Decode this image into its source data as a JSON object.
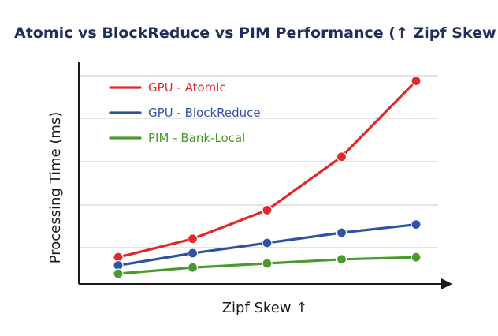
{
  "chart_data": {
    "type": "line",
    "title": "Atomic vs BlockReduce vs PIM Performance (↑ Zipf Skew ↑",
    "xlabel": "Zipf Skew ↑",
    "ylabel": "Processing Time (ms)",
    "x": [
      1,
      2,
      3,
      4,
      5
    ],
    "ylim": [
      0,
      100
    ],
    "grid": true,
    "legend_position": "top-left",
    "series": [
      {
        "name": "GPU - Atomic",
        "color": "#e02a2a",
        "values": [
          13,
          22,
          36,
          62,
          99
        ]
      },
      {
        "name": "GPU - BlockReduce",
        "color": "#2f52a5",
        "values": [
          9,
          15,
          20,
          25,
          29
        ]
      },
      {
        "name": "PIM - Bank-Local",
        "color": "#4a9a2e",
        "values": [
          5,
          8,
          10,
          12,
          13
        ]
      }
    ]
  },
  "colors": {
    "title": "#1f2f5a",
    "axis": "#1a1a1a",
    "grid": "#c9c9c9"
  }
}
